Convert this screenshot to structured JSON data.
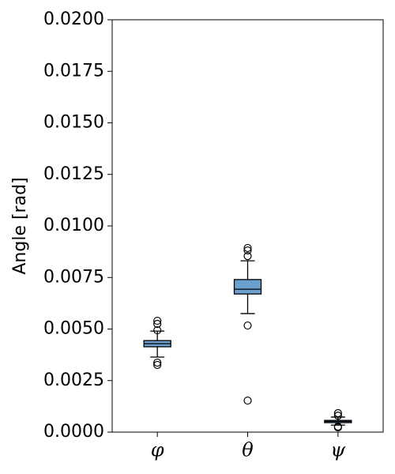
{
  "chart_data": {
    "type": "box",
    "ylabel": "Angle [rad]",
    "categories": [
      "φ",
      "θ",
      "ψ"
    ],
    "color": "#6ca0cf",
    "ylim": [
      0,
      0.02
    ],
    "yticks": [
      {
        "value": 0,
        "label": "0.0000"
      },
      {
        "value": 0.0025,
        "label": "0.0025"
      },
      {
        "value": 0.005,
        "label": "0.0050"
      },
      {
        "value": 0.0075,
        "label": "0.0075"
      },
      {
        "value": 0.01,
        "label": "0.0100"
      },
      {
        "value": 0.0125,
        "label": "0.0125"
      },
      {
        "value": 0.015,
        "label": "0.0150"
      },
      {
        "value": 0.0175,
        "label": "0.0175"
      },
      {
        "value": 0.02,
        "label": "0.0200"
      }
    ],
    "boxes": [
      {
        "whisker_low": 0.00364,
        "q1": 0.00414,
        "median": 0.00429,
        "q3": 0.00444,
        "whisker_high": 0.0049,
        "outliers": [
          0.0054,
          0.00525,
          0.00494,
          0.00337,
          0.00326
        ]
      },
      {
        "whisker_low": 0.00575,
        "q1": 0.0067,
        "median": 0.00693,
        "q3": 0.0074,
        "whisker_high": 0.00831,
        "outliers": [
          0.00893,
          0.00881,
          0.00854,
          0.00517,
          0.00153
        ]
      },
      {
        "whisker_low": 0.00034,
        "q1": 0.00046,
        "median": 0.00052,
        "q3": 0.00057,
        "whisker_high": 0.00073,
        "outliers": [
          0.00092,
          0.0008,
          0.00027,
          0.00023
        ]
      }
    ]
  }
}
